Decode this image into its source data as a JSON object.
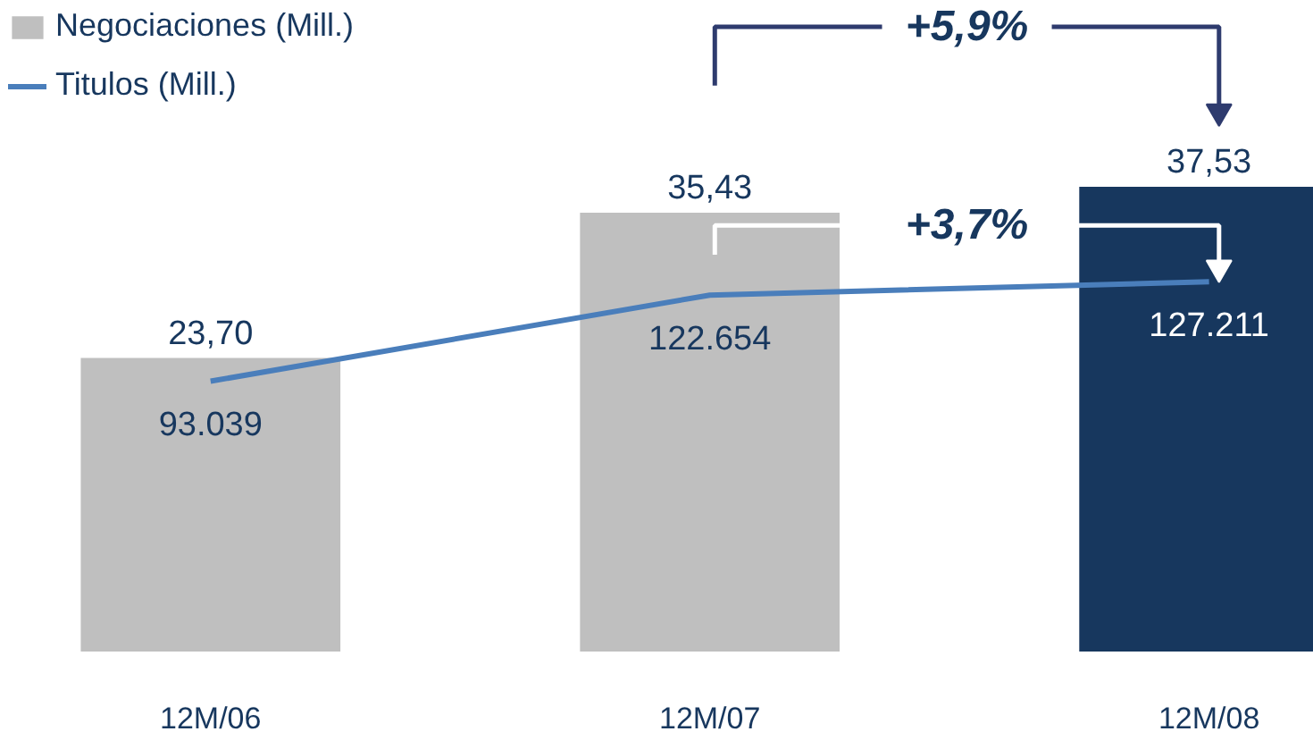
{
  "chart_data": {
    "type": "bar",
    "categories": [
      "12M/06",
      "12M/07",
      "12M/08"
    ],
    "series": [
      {
        "name": "Negociaciones (Mill.)",
        "colors": [
          "#bfbfbf",
          "#bfbfbf",
          "#17375e"
        ],
        "values": [
          23.7,
          35.43,
          37.53
        ],
        "value_labels": [
          "23,70",
          "35,43",
          "37,53"
        ]
      },
      {
        "name": "Titulos (Mill.)",
        "type": "line",
        "axis": "y2",
        "color": "#4a7ebb",
        "values": [
          93039,
          122654,
          127211
        ],
        "value_labels": [
          "93.039",
          "122.654",
          "127.211"
        ]
      }
    ],
    "annotations": [
      "+5,9%",
      "+3,7%"
    ],
    "legend": "top left",
    "grid": false
  }
}
